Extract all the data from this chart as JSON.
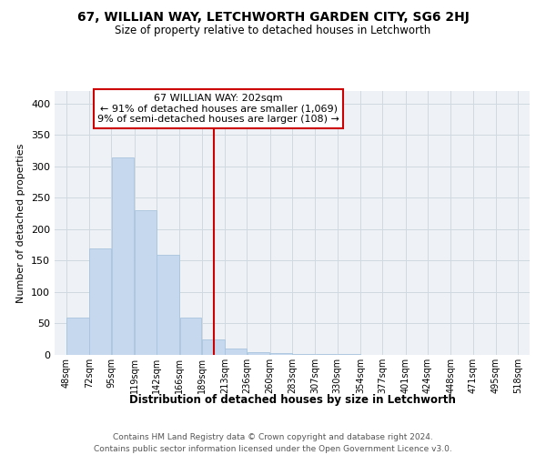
{
  "title": "67, WILLIAN WAY, LETCHWORTH GARDEN CITY, SG6 2HJ",
  "subtitle": "Size of property relative to detached houses in Letchworth",
  "xlabel": "Distribution of detached houses by size in Letchworth",
  "ylabel": "Number of detached properties",
  "bar_left_edges": [
    48,
    72,
    95,
    119,
    142,
    166,
    189,
    213,
    236,
    260,
    283,
    307,
    330,
    354,
    377,
    401,
    424,
    448,
    471,
    495
  ],
  "bar_widths": [
    24,
    23,
    24,
    23,
    24,
    23,
    24,
    23,
    24,
    23,
    24,
    23,
    24,
    23,
    24,
    23,
    24,
    23,
    24,
    23
  ],
  "bar_heights": [
    60,
    170,
    315,
    230,
    160,
    60,
    25,
    10,
    5,
    3,
    2,
    1,
    1,
    0,
    0,
    0,
    0,
    0,
    0,
    0
  ],
  "bar_color": "#c5d8ed",
  "bar_edge_color": "#a8c4de",
  "grid_color": "#d0d8e0",
  "bg_color": "#eef2f7",
  "property_size": 202,
  "property_line_color": "#cc0000",
  "annotation_box_color": "#cc0000",
  "annotation_line1": "67 WILLIAN WAY: 202sqm",
  "annotation_line2": "← 91% of detached houses are smaller (1,069)",
  "annotation_line3": "9% of semi-detached houses are larger (108) →",
  "ylim": [
    0,
    420
  ],
  "xlim": [
    36,
    530
  ],
  "yticks": [
    0,
    50,
    100,
    150,
    200,
    250,
    300,
    350,
    400
  ],
  "xtick_labels": [
    "48sqm",
    "72sqm",
    "95sqm",
    "119sqm",
    "142sqm",
    "166sqm",
    "189sqm",
    "213sqm",
    "236sqm",
    "260sqm",
    "283sqm",
    "307sqm",
    "330sqm",
    "354sqm",
    "377sqm",
    "401sqm",
    "424sqm",
    "448sqm",
    "471sqm",
    "495sqm",
    "518sqm"
  ],
  "xtick_positions": [
    48,
    72,
    95,
    119,
    142,
    166,
    189,
    213,
    236,
    260,
    283,
    307,
    330,
    354,
    377,
    401,
    424,
    448,
    471,
    495,
    518
  ],
  "footer_line1": "Contains HM Land Registry data © Crown copyright and database right 2024.",
  "footer_line2": "Contains public sector information licensed under the Open Government Licence v3.0."
}
